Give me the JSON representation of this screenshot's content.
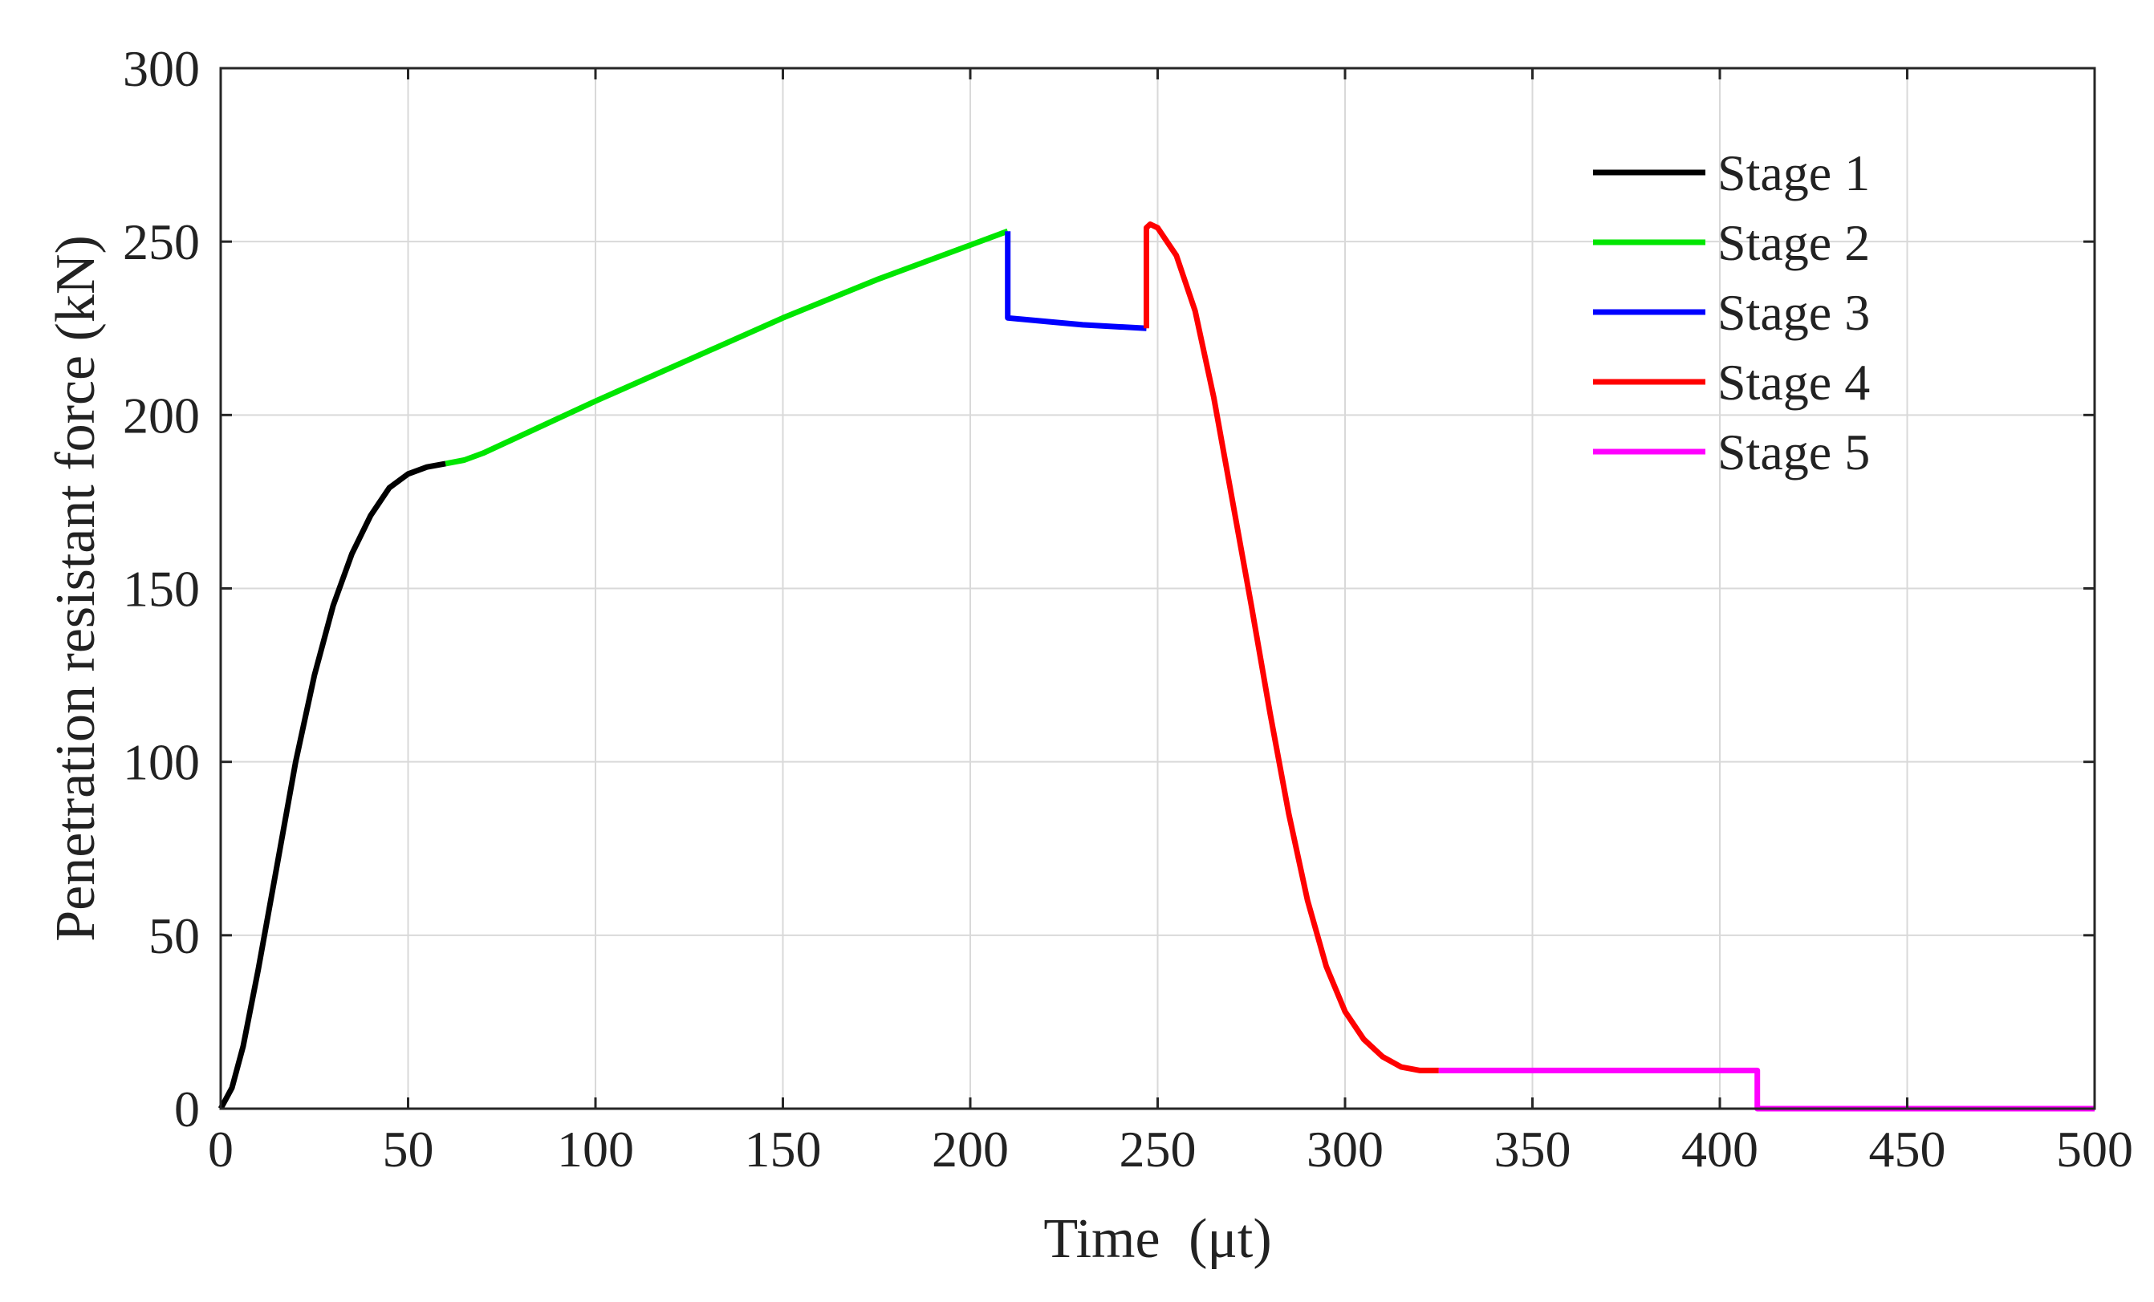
{
  "chart_data": {
    "type": "line",
    "title": "",
    "xlabel": "Time",
    "xlabel_unit": "(μt)",
    "ylabel": "Penetration resistant force (kN)",
    "xlim": [
      0,
      500
    ],
    "ylim": [
      0,
      300
    ],
    "xticks": [
      0,
      50,
      100,
      150,
      200,
      250,
      300,
      350,
      400,
      450,
      500
    ],
    "yticks": [
      0,
      50,
      100,
      150,
      200,
      250,
      300
    ],
    "grid": true,
    "legend_position": "top-right",
    "series": [
      {
        "name": "Stage 1",
        "color": "#000000",
        "x": [
          0,
          3,
          6,
          10,
          15,
          20,
          25,
          30,
          35,
          40,
          45,
          50,
          55,
          60
        ],
        "y": [
          0,
          6,
          18,
          40,
          70,
          100,
          125,
          145,
          160,
          171,
          179,
          183,
          185,
          186
        ]
      },
      {
        "name": "Stage 2",
        "color": "#00e600",
        "x": [
          60,
          65,
          70,
          80,
          100,
          125,
          150,
          175,
          200,
          210
        ],
        "y": [
          186,
          187,
          189,
          194,
          204,
          216,
          228,
          239,
          249,
          253
        ]
      },
      {
        "name": "Stage 3",
        "color": "#0000ff",
        "x": [
          210,
          210,
          220,
          230,
          247
        ],
        "y": [
          253,
          228,
          227,
          226,
          225
        ]
      },
      {
        "name": "Stage 4",
        "color": "#ff0000",
        "x": [
          247,
          247,
          248,
          250,
          255,
          260,
          265,
          270,
          275,
          280,
          285,
          290,
          295,
          300,
          305,
          310,
          315,
          320,
          325
        ],
        "y": [
          225,
          254,
          255,
          254,
          246,
          230,
          205,
          175,
          145,
          114,
          85,
          60,
          41,
          28,
          20,
          15,
          12,
          11,
          11
        ]
      },
      {
        "name": "Stage 5",
        "color": "#ff00ff",
        "x": [
          325,
          350,
          400,
          410,
          410,
          450,
          500
        ],
        "y": [
          11,
          11,
          11,
          11,
          0,
          0,
          0
        ]
      }
    ]
  }
}
